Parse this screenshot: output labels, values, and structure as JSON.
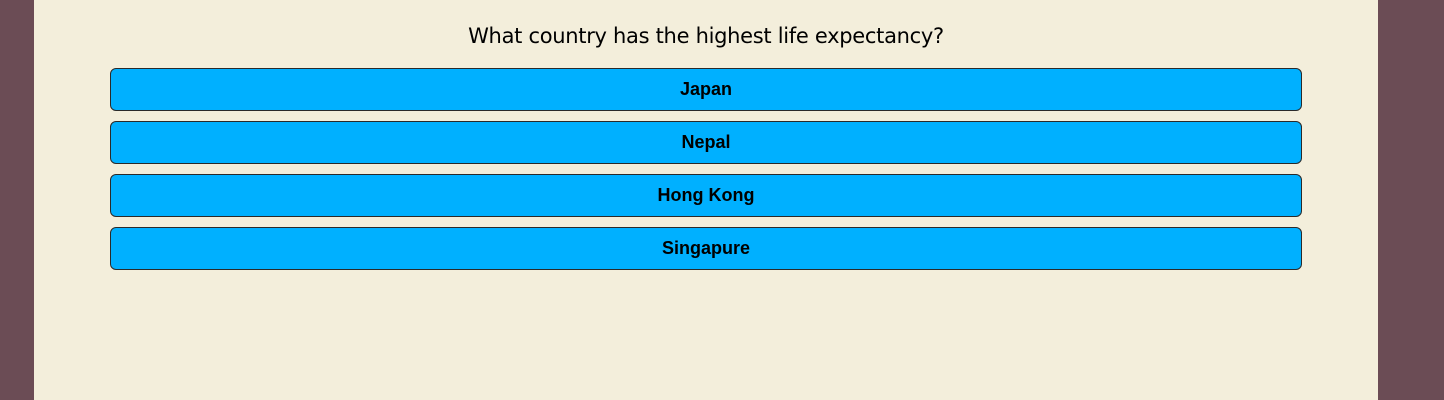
{
  "quiz": {
    "question": "What country has the highest life expectancy?",
    "answers": [
      {
        "label": "Japan"
      },
      {
        "label": "Nepal"
      },
      {
        "label": "Hong Kong"
      },
      {
        "label": "Singapure"
      }
    ]
  },
  "colors": {
    "outer_background": "#6b4c55",
    "panel_background": "#f3eedb",
    "answer_button": "#00b0ff"
  }
}
